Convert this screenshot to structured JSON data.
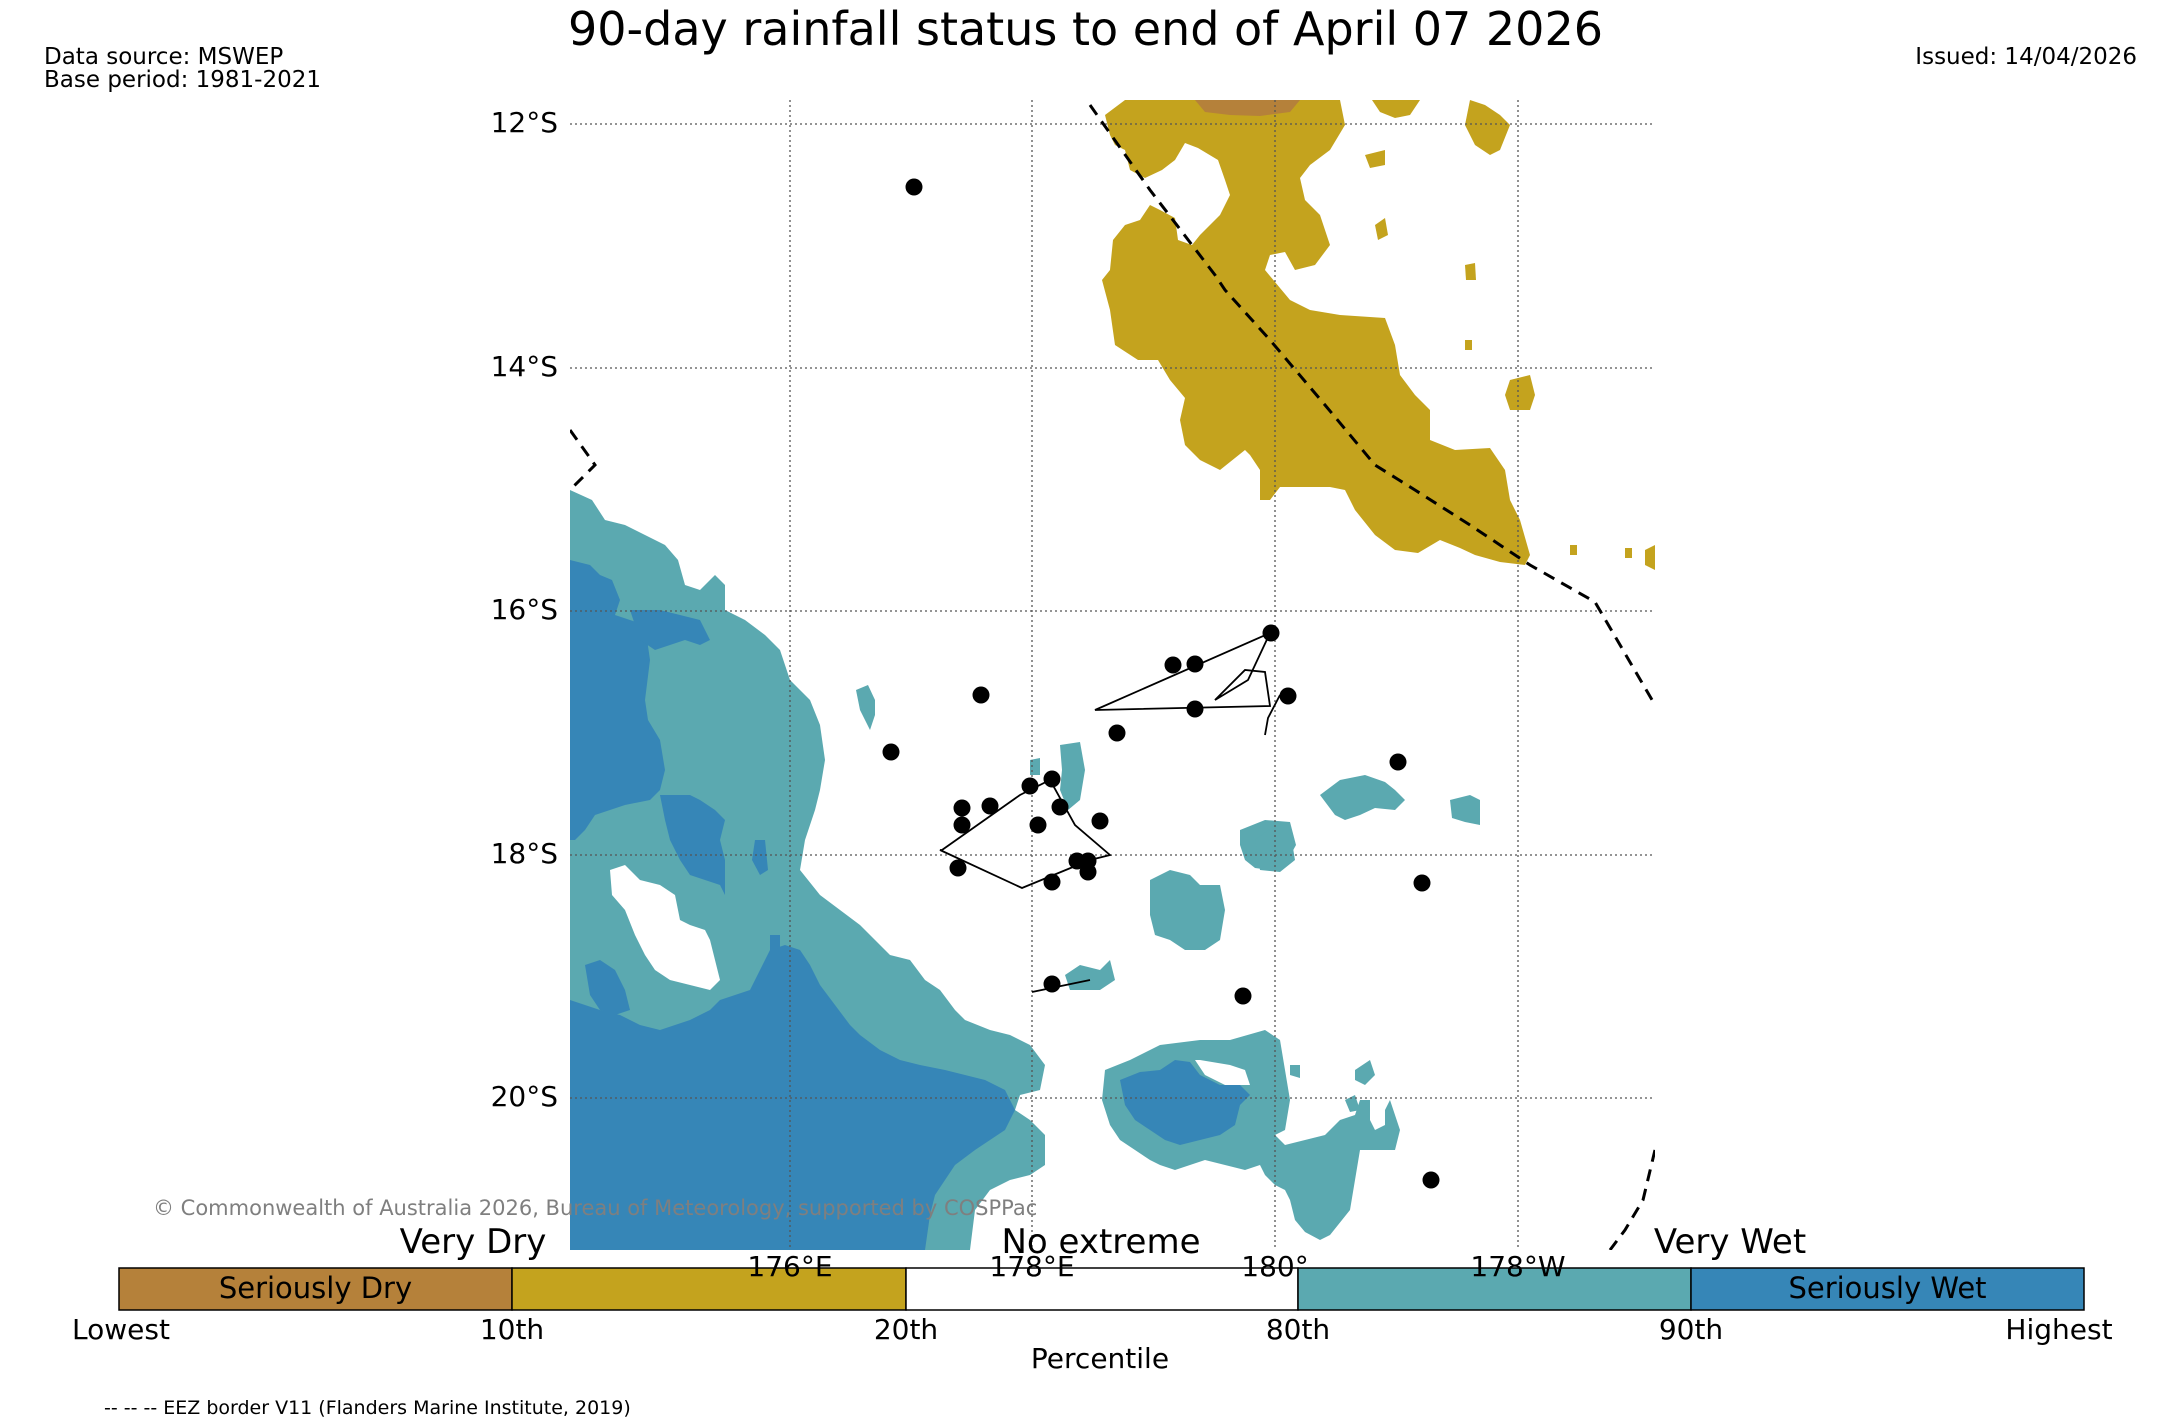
{
  "title": "90-day rainfall status to end of April 07 2026",
  "data_source": "Data source: MSWEP",
  "base_period": "Base period: 1981-2021",
  "issued": "Issued: 14/04/2026",
  "copyright": "© Commonwealth of Australia 2026, Bureau of Meteorology, supported by COSPPac",
  "map": {
    "lat_labels": [
      "12°S",
      "14°S",
      "16°S",
      "18°S",
      "20°S"
    ],
    "lon_labels": [
      "176°E",
      "178°E",
      "180°",
      "178°W"
    ],
    "colors": {
      "seriously_dry": "#b5813a",
      "very_dry": "#c4a31e",
      "no_extreme": "#ffffff",
      "very_wet": "#5ba9b0",
      "seriously_wet": "#3686b7"
    }
  },
  "legend": {
    "very_dry": "Very Dry",
    "no_extreme": "No extreme",
    "very_wet": "Very Wet",
    "segments": [
      "Seriously Dry",
      "",
      "",
      "",
      "Seriously Wet"
    ],
    "ticks": [
      "Lowest",
      "10th",
      "20th",
      "80th",
      "90th",
      "Highest"
    ],
    "axis_label": "Percentile"
  },
  "eez_note": "-- -- -- EEZ border V11 (Flanders Marine Institute, 2019)"
}
